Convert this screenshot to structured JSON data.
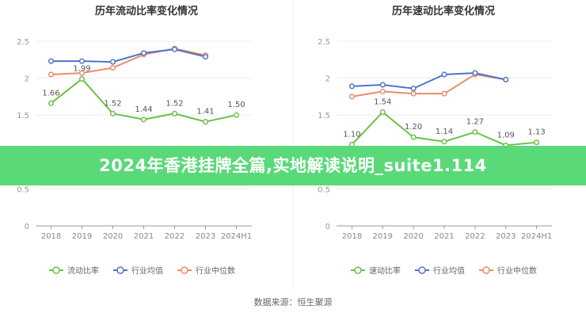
{
  "chart_data": [
    {
      "type": "line",
      "title": "历年流动比率变化情况",
      "categories": [
        "2018",
        "2019",
        "2020",
        "2021",
        "2022",
        "2023",
        "2024H1"
      ],
      "ylim": [
        0,
        2.5
      ],
      "yticks": [
        "0",
        "0.5",
        "1",
        "1.5",
        "2",
        "2.5"
      ],
      "grid": true,
      "legend": "bottom",
      "series": [
        {
          "name": "流动比率",
          "color": "#6cc04a",
          "values": [
            1.66,
            1.99,
            1.52,
            1.44,
            1.52,
            1.41,
            1.5
          ],
          "labels": [
            "1.66",
            "1.99",
            "1.52",
            "1.44",
            "1.52",
            "1.41",
            "1.50"
          ]
        },
        {
          "name": "行业均值",
          "color": "#4f74c8",
          "values": [
            2.23,
            2.23,
            2.22,
            2.34,
            2.39,
            2.29,
            null
          ]
        },
        {
          "name": "行业中位数",
          "color": "#ea8c6a",
          "values": [
            2.05,
            2.07,
            2.14,
            2.32,
            2.4,
            2.31,
            null
          ]
        }
      ]
    },
    {
      "type": "line",
      "title": "历年速动比率变化情况",
      "categories": [
        "2018",
        "2019",
        "2020",
        "2021",
        "2022",
        "2023",
        "2024H1"
      ],
      "ylim": [
        0,
        2.5
      ],
      "yticks": [
        "0",
        "0.5",
        "1",
        "1.5",
        "2",
        "2.5"
      ],
      "grid": true,
      "legend": "bottom",
      "series": [
        {
          "name": "速动比率",
          "color": "#6cc04a",
          "values": [
            1.1,
            1.54,
            1.2,
            1.14,
            1.27,
            1.09,
            1.13
          ],
          "labels": [
            "1.10",
            "1.54",
            "1.20",
            "1.14",
            "1.27",
            "1.09",
            "1.13"
          ]
        },
        {
          "name": "行业均值",
          "color": "#4f74c8",
          "values": [
            1.89,
            1.91,
            1.86,
            2.05,
            2.07,
            1.98,
            null
          ]
        },
        {
          "name": "行业中位数",
          "color": "#ea8c6a",
          "values": [
            1.75,
            1.82,
            1.79,
            1.79,
            2.05,
            1.98,
            null
          ]
        }
      ]
    }
  ],
  "banner": {
    "text": "2024年香港挂牌全篇,实地解读说明_suite1.114",
    "color": "#4cd66e"
  },
  "source": "数据来源：恒生聚源"
}
